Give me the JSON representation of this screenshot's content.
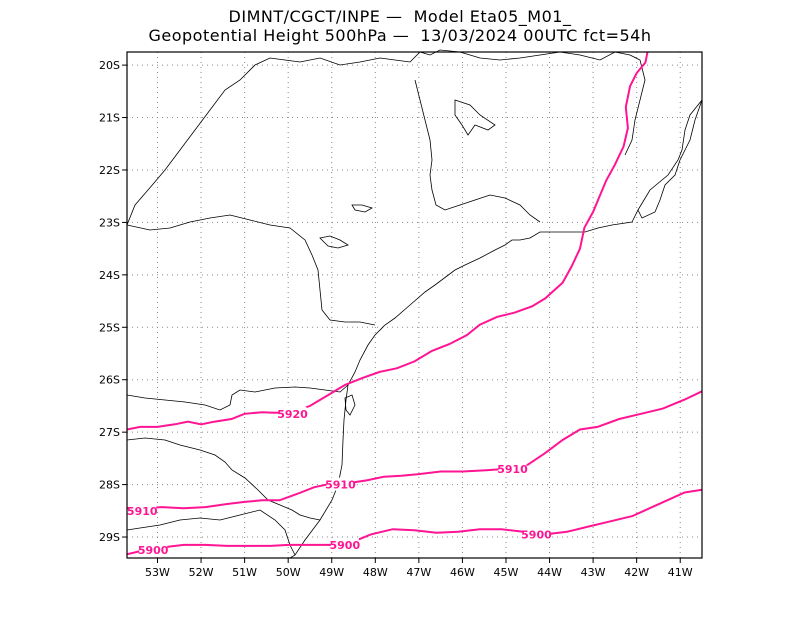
{
  "chart_data": {
    "type": "line",
    "title_line1": "DIMNT/CGCT/INPE —  Model Eta05_M01_",
    "title_line2": "Geopotential Height 500hPa —  13/03/2024 00UTC fct=54h",
    "xlim": [
      -53.7,
      -40.5
    ],
    "ylim": [
      -29.4,
      -19.75
    ],
    "x_ticks": [
      -53,
      -52,
      -51,
      -50,
      -49,
      -48,
      -47,
      -46,
      -45,
      -44,
      -43,
      -42,
      -41
    ],
    "x_tick_labels": [
      "53W",
      "52W",
      "51W",
      "50W",
      "49W",
      "48W",
      "47W",
      "46W",
      "45W",
      "44W",
      "43W",
      "42W",
      "41W"
    ],
    "y_ticks": [
      -20,
      -21,
      -22,
      -23,
      -24,
      -25,
      -26,
      -27,
      -28,
      -29
    ],
    "y_tick_labels": [
      "20S",
      "21S",
      "22S",
      "23S",
      "24S",
      "25S",
      "26S",
      "27S",
      "28S",
      "29S"
    ],
    "grid": true,
    "line_color": "#ff1493",
    "series": [
      {
        "name": "5920",
        "labels": [
          {
            "text": "5920",
            "x": -49.9,
            "y": -26.65
          }
        ],
        "points": [
          [
            -53.7,
            -26.95
          ],
          [
            -53.4,
            -26.9
          ],
          [
            -53.0,
            -26.9
          ],
          [
            -52.6,
            -26.85
          ],
          [
            -52.3,
            -26.8
          ],
          [
            -52.0,
            -26.85
          ],
          [
            -51.7,
            -26.8
          ],
          [
            -51.3,
            -26.75
          ],
          [
            -51.0,
            -26.65
          ],
          [
            -50.6,
            -26.62
          ],
          [
            -50.3,
            -26.63
          ],
          [
            -49.9,
            -26.62
          ],
          [
            -49.5,
            -26.5
          ],
          [
            -49.1,
            -26.3
          ],
          [
            -48.7,
            -26.1
          ],
          [
            -48.3,
            -25.97
          ],
          [
            -47.9,
            -25.85
          ],
          [
            -47.5,
            -25.78
          ],
          [
            -47.1,
            -25.65
          ],
          [
            -46.7,
            -25.45
          ],
          [
            -46.3,
            -25.32
          ],
          [
            -45.9,
            -25.15
          ],
          [
            -45.6,
            -24.95
          ],
          [
            -45.2,
            -24.8
          ],
          [
            -44.8,
            -24.72
          ],
          [
            -44.4,
            -24.6
          ],
          [
            -44.1,
            -24.45
          ],
          [
            -43.7,
            -24.15
          ],
          [
            -43.5,
            -23.85
          ],
          [
            -43.3,
            -23.5
          ],
          [
            -43.2,
            -23.1
          ],
          [
            -43.0,
            -22.8
          ],
          [
            -42.85,
            -22.5
          ],
          [
            -42.7,
            -22.2
          ],
          [
            -42.5,
            -21.9
          ],
          [
            -42.3,
            -21.55
          ],
          [
            -42.2,
            -21.2
          ],
          [
            -42.25,
            -20.8
          ],
          [
            -42.15,
            -20.4
          ],
          [
            -42.0,
            -20.15
          ],
          [
            -41.8,
            -19.95
          ],
          [
            -41.75,
            -19.75
          ]
        ]
      },
      {
        "name": "5910",
        "labels": [
          {
            "text": "5910",
            "x": -53.35,
            "y": -28.5
          },
          {
            "text": "5910",
            "x": -48.8,
            "y": -28.0
          },
          {
            "text": "5910",
            "x": -44.85,
            "y": -27.7
          }
        ],
        "points": [
          [
            -53.7,
            -28.45
          ],
          [
            -53.3,
            -28.45
          ],
          [
            -52.9,
            -28.43
          ],
          [
            -52.4,
            -28.45
          ],
          [
            -51.9,
            -28.43
          ],
          [
            -51.4,
            -28.37
          ],
          [
            -51.0,
            -28.33
          ],
          [
            -50.6,
            -28.3
          ],
          [
            -50.2,
            -28.3
          ],
          [
            -49.8,
            -28.18
          ],
          [
            -49.4,
            -28.05
          ],
          [
            -49.0,
            -27.98
          ],
          [
            -48.6,
            -27.97
          ],
          [
            -48.2,
            -27.92
          ],
          [
            -47.8,
            -27.85
          ],
          [
            -47.4,
            -27.83
          ],
          [
            -47.0,
            -27.8
          ],
          [
            -46.5,
            -27.75
          ],
          [
            -46.0,
            -27.75
          ],
          [
            -45.5,
            -27.73
          ],
          [
            -45.0,
            -27.7
          ],
          [
            -44.5,
            -27.62
          ],
          [
            -44.1,
            -27.4
          ],
          [
            -43.7,
            -27.15
          ],
          [
            -43.3,
            -26.95
          ],
          [
            -42.9,
            -26.9
          ],
          [
            -42.4,
            -26.75
          ],
          [
            -41.9,
            -26.65
          ],
          [
            -41.4,
            -26.55
          ],
          [
            -40.9,
            -26.38
          ],
          [
            -40.5,
            -26.22
          ]
        ]
      },
      {
        "name": "5900",
        "labels": [
          {
            "text": "5900",
            "x": -53.1,
            "y": -29.25
          },
          {
            "text": "5900",
            "x": -48.7,
            "y": -29.15
          },
          {
            "text": "5900",
            "x": -44.3,
            "y": -28.95
          }
        ],
        "points": [
          [
            -53.7,
            -29.33
          ],
          [
            -53.3,
            -29.25
          ],
          [
            -52.9,
            -29.2
          ],
          [
            -52.4,
            -29.15
          ],
          [
            -51.9,
            -29.15
          ],
          [
            -51.4,
            -29.17
          ],
          [
            -50.9,
            -29.17
          ],
          [
            -50.4,
            -29.17
          ],
          [
            -50.0,
            -29.15
          ],
          [
            -49.5,
            -29.15
          ],
          [
            -49.0,
            -29.15
          ],
          [
            -48.6,
            -29.12
          ],
          [
            -48.1,
            -28.95
          ],
          [
            -47.6,
            -28.85
          ],
          [
            -47.1,
            -28.87
          ],
          [
            -46.6,
            -28.92
          ],
          [
            -46.1,
            -28.9
          ],
          [
            -45.6,
            -28.85
          ],
          [
            -45.1,
            -28.85
          ],
          [
            -44.6,
            -28.9
          ],
          [
            -44.1,
            -28.95
          ],
          [
            -43.6,
            -28.9
          ],
          [
            -43.1,
            -28.8
          ],
          [
            -42.6,
            -28.7
          ],
          [
            -42.1,
            -28.6
          ],
          [
            -41.7,
            -28.45
          ],
          [
            -41.3,
            -28.3
          ],
          [
            -40.9,
            -28.15
          ],
          [
            -40.5,
            -28.1
          ]
        ]
      }
    ]
  }
}
